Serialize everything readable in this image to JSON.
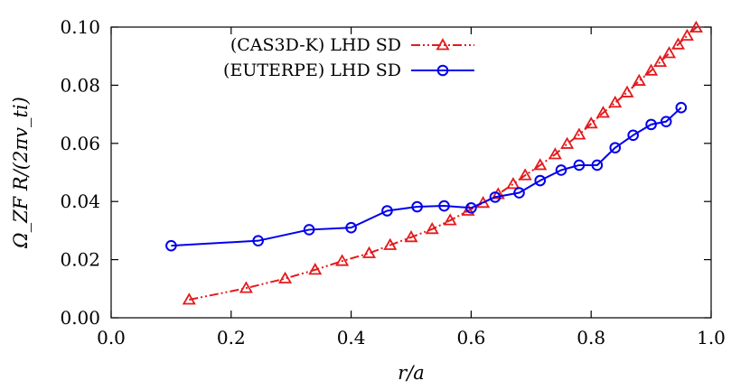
{
  "chart_data": {
    "type": "line",
    "xlabel": "r/a",
    "ylabel": "Ω_ZF R/(2πv_ti)",
    "xlim": [
      0.0,
      1.0
    ],
    "ylim": [
      0.0,
      0.1
    ],
    "x_ticks": [
      0.0,
      0.2,
      0.4,
      0.6,
      0.8,
      1.0
    ],
    "x_tick_labels": [
      "0.0",
      "0.2",
      "0.4",
      "0.6",
      "0.8",
      "1.0"
    ],
    "y_ticks": [
      0.0,
      0.02,
      0.04,
      0.06,
      0.08,
      0.1
    ],
    "y_tick_labels": [
      "0.00",
      "0.02",
      "0.04",
      "0.06",
      "0.08",
      "0.10"
    ],
    "grid": false,
    "legend_position": "top-center",
    "series": [
      {
        "name": "(CAS3D-K) LHD SD",
        "color": "#e41a1c",
        "marker": "triangle",
        "line_style": "dash-dot-dot",
        "x": [
          0.13,
          0.225,
          0.29,
          0.34,
          0.385,
          0.43,
          0.465,
          0.5,
          0.535,
          0.565,
          0.595,
          0.62,
          0.645,
          0.67,
          0.69,
          0.715,
          0.74,
          0.76,
          0.78,
          0.8,
          0.82,
          0.84,
          0.86,
          0.88,
          0.9,
          0.915,
          0.93,
          0.945,
          0.96,
          0.975
        ],
        "y": [
          0.0062,
          0.0102,
          0.0135,
          0.0165,
          0.0195,
          0.0222,
          0.025,
          0.0277,
          0.0305,
          0.0335,
          0.0368,
          0.0395,
          0.0425,
          0.046,
          0.049,
          0.0525,
          0.0562,
          0.0598,
          0.063,
          0.0668,
          0.0705,
          0.074,
          0.0775,
          0.0815,
          0.085,
          0.088,
          0.091,
          0.094,
          0.097,
          0.0998
        ]
      },
      {
        "name": "(EUTERPE) LHD SD",
        "color": "#0000ee",
        "marker": "circle",
        "line_style": "solid",
        "x": [
          0.1,
          0.245,
          0.33,
          0.4,
          0.46,
          0.51,
          0.555,
          0.6,
          0.64,
          0.68,
          0.715,
          0.75,
          0.78,
          0.81,
          0.84,
          0.87,
          0.9,
          0.925,
          0.95
        ],
        "y": [
          0.0248,
          0.0265,
          0.0303,
          0.031,
          0.0368,
          0.0382,
          0.0385,
          0.0378,
          0.0415,
          0.043,
          0.0472,
          0.0508,
          0.0525,
          0.0525,
          0.0585,
          0.0628,
          0.0665,
          0.0675,
          0.0723
        ]
      }
    ]
  }
}
